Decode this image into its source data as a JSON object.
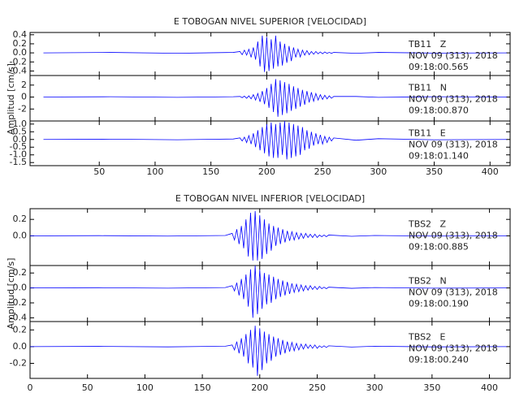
{
  "chart_data": [
    {
      "type": "line",
      "title": "E TOBOGAN NIVEL SUPERIOR [VELOCIDAD]",
      "y_label": "Amplitud [cm/s]",
      "xlim": [
        -12,
        418
      ],
      "xticks": [
        50,
        100,
        150,
        200,
        250,
        300,
        350,
        400
      ],
      "x": [
        0,
        60,
        120,
        170,
        176,
        178,
        180,
        182,
        184,
        186,
        188,
        190,
        192,
        194,
        196,
        198,
        200,
        202,
        204,
        206,
        208,
        210,
        212,
        214,
        216,
        218,
        220,
        222,
        224,
        226,
        228,
        230,
        232,
        234,
        236,
        238,
        240,
        242,
        244,
        246,
        248,
        250,
        252,
        254,
        256,
        258,
        260,
        280,
        300,
        350,
        415
      ],
      "series": [
        {
          "name": "TB11   Z",
          "date": "NOV 09 (313), 2018",
          "time": "09:18:00.565",
          "color": "#0000ff",
          "ylim": [
            -0.5,
            0.45
          ],
          "yticks": [
            0.4,
            0.2,
            {
              "value": 0,
              "label": "0.0"
            },
            -0.2,
            -0.4
          ],
          "values": [
            0,
            0.01,
            -0.01,
            0.01,
            0.03,
            -0.04,
            0.06,
            -0.05,
            0.08,
            -0.1,
            0.12,
            -0.15,
            0.25,
            -0.3,
            0.38,
            -0.42,
            0.35,
            -0.4,
            0.3,
            -0.35,
            0.38,
            -0.3,
            0.25,
            -0.28,
            0.2,
            -0.22,
            0.15,
            -0.18,
            0.12,
            -0.1,
            0.08,
            -0.09,
            0.06,
            -0.05,
            0.05,
            -0.04,
            0.03,
            -0.03,
            0.03,
            -0.02,
            0.02,
            -0.02,
            0.02,
            -0.01,
            0.01,
            -0.01,
            0.01,
            -0.01,
            0.01,
            -0.005,
            0
          ]
        },
        {
          "name": "TB11   N",
          "date": "NOV 09 (313), 2018",
          "time": "09:18:00.870",
          "color": "#0000ff",
          "ylim": [
            -4,
            3.6
          ],
          "yticks": [
            2,
            0,
            -2
          ],
          "values": [
            0,
            0.05,
            -0.05,
            0.05,
            0.1,
            -0.1,
            0.15,
            -0.2,
            0.2,
            -0.3,
            0.4,
            -0.5,
            0.6,
            -0.8,
            1.0,
            -1.2,
            1.5,
            -1.8,
            2.2,
            -2.5,
            3.0,
            -3.3,
            2.8,
            -3.0,
            2.5,
            -2.7,
            2.2,
            -2.3,
            1.8,
            -2.0,
            1.5,
            -1.6,
            1.2,
            -1.3,
            1.0,
            -0.9,
            0.8,
            -0.7,
            0.6,
            -0.5,
            0.4,
            -0.4,
            0.3,
            -0.3,
            0.2,
            -0.2,
            0.1,
            0.1,
            -0.05,
            0.05,
            0
          ]
        },
        {
          "name": "TB11   E",
          "date": "NOV 09 (313), 2018",
          "time": "09:18:01.140",
          "color": "#0000ff",
          "ylim": [
            -1.7,
            1.2
          ],
          "yticks": [
            {
              "value": 1,
              "label": "1.0"
            },
            0.5,
            {
              "value": 0,
              "label": "0.0"
            },
            -0.5,
            {
              "value": -1,
              "label": "-1.0"
            },
            -1.5
          ],
          "values": [
            0,
            0.02,
            -0.02,
            0.03,
            0.1,
            -0.1,
            0.15,
            -0.2,
            0.25,
            -0.3,
            0.4,
            -0.5,
            0.6,
            -0.7,
            0.8,
            -0.9,
            1.0,
            -1.1,
            1.1,
            -1.2,
            1.0,
            -1.2,
            1.1,
            -1.0,
            1.2,
            -1.3,
            1.1,
            -1.2,
            1.0,
            -1.1,
            0.9,
            -1.0,
            0.8,
            -0.7,
            0.6,
            -0.6,
            0.5,
            -0.4,
            0.4,
            -0.3,
            0.3,
            -0.3,
            0.2,
            -0.2,
            0.15,
            -0.1,
            0.1,
            -0.05,
            0.05,
            -0.02,
            0
          ]
        }
      ]
    },
    {
      "type": "line",
      "title": "E TOBOGAN NIVEL INFERIOR [VELOCIDAD]",
      "y_label": "Amplitud [cm/s]",
      "xlim": [
        0,
        418
      ],
      "xticks": [
        0,
        50,
        100,
        150,
        200,
        250,
        300,
        350,
        400
      ],
      "x": [
        0,
        60,
        120,
        170,
        176,
        178,
        180,
        182,
        184,
        186,
        188,
        190,
        192,
        194,
        196,
        198,
        200,
        202,
        204,
        206,
        208,
        210,
        212,
        214,
        216,
        218,
        220,
        222,
        224,
        226,
        228,
        230,
        232,
        234,
        236,
        238,
        240,
        242,
        244,
        246,
        248,
        250,
        252,
        254,
        256,
        258,
        260,
        280,
        300,
        350,
        415
      ],
      "series": [
        {
          "name": "TBS2   Z",
          "date": "NOV 09 (313), 2018",
          "time": "09:18:00.885",
          "color": "#0000ff",
          "ylim": [
            -0.36,
            0.33
          ],
          "yticks": [
            0.2,
            {
              "value": 0,
              "label": "0.0"
            }
          ],
          "values": [
            0,
            0.003,
            -0.003,
            0.005,
            0.03,
            -0.05,
            0.08,
            -0.1,
            0.12,
            -0.15,
            0.2,
            -0.25,
            0.28,
            -0.3,
            0.3,
            -0.3,
            0.25,
            -0.28,
            0.2,
            -0.22,
            0.15,
            -0.18,
            0.12,
            -0.12,
            0.1,
            -0.1,
            0.08,
            -0.08,
            0.06,
            -0.06,
            0.05,
            -0.05,
            0.04,
            -0.04,
            0.03,
            -0.03,
            0.03,
            -0.02,
            0.02,
            -0.02,
            0.02,
            -0.02,
            0.01,
            -0.01,
            0.01,
            -0.01,
            0.01,
            -0.005,
            0.005,
            -0.003,
            0
          ]
        },
        {
          "name": "TBS2   N",
          "date": "NOV 09 (313), 2018",
          "time": "09:18:00.190",
          "color": "#0000ff",
          "ylim": [
            -0.45,
            0.3
          ],
          "yticks": [
            0.2,
            {
              "value": 0,
              "label": "0.0"
            },
            -0.2,
            -0.4
          ],
          "values": [
            0,
            0.003,
            -0.003,
            0.005,
            0.03,
            -0.04,
            0.07,
            -0.1,
            0.12,
            -0.15,
            0.18,
            -0.25,
            0.25,
            -0.4,
            0.3,
            -0.35,
            0.25,
            -0.28,
            0.2,
            -0.22,
            0.18,
            -0.2,
            0.15,
            -0.15,
            0.12,
            -0.12,
            0.1,
            -0.1,
            0.08,
            -0.08,
            0.06,
            -0.06,
            0.05,
            -0.05,
            0.04,
            -0.04,
            0.03,
            -0.03,
            0.03,
            -0.02,
            0.02,
            -0.02,
            0.02,
            -0.01,
            0.01,
            -0.01,
            0.01,
            -0.005,
            0.005,
            -0.003,
            0
          ]
        },
        {
          "name": "TBS2   E",
          "date": "NOV 09 (313), 2018",
          "time": "09:18:00.240",
          "color": "#0000ff",
          "ylim": [
            -0.38,
            0.3
          ],
          "yticks": [
            0.2,
            {
              "value": 0,
              "label": "0.0"
            },
            -0.2
          ],
          "values": [
            0,
            0.003,
            -0.003,
            0.005,
            0.02,
            -0.04,
            0.06,
            -0.08,
            0.1,
            -0.12,
            0.15,
            -0.2,
            0.2,
            -0.25,
            0.25,
            -0.35,
            0.22,
            -0.28,
            0.18,
            -0.2,
            0.15,
            -0.17,
            0.12,
            -0.12,
            0.1,
            -0.1,
            0.08,
            -0.08,
            0.06,
            -0.06,
            0.05,
            -0.05,
            0.04,
            -0.04,
            0.03,
            -0.03,
            0.03,
            -0.02,
            0.02,
            -0.02,
            0.02,
            -0.02,
            0.01,
            -0.01,
            0.01,
            -0.01,
            0.01,
            -0.005,
            0.005,
            -0.003,
            0
          ]
        }
      ]
    }
  ]
}
